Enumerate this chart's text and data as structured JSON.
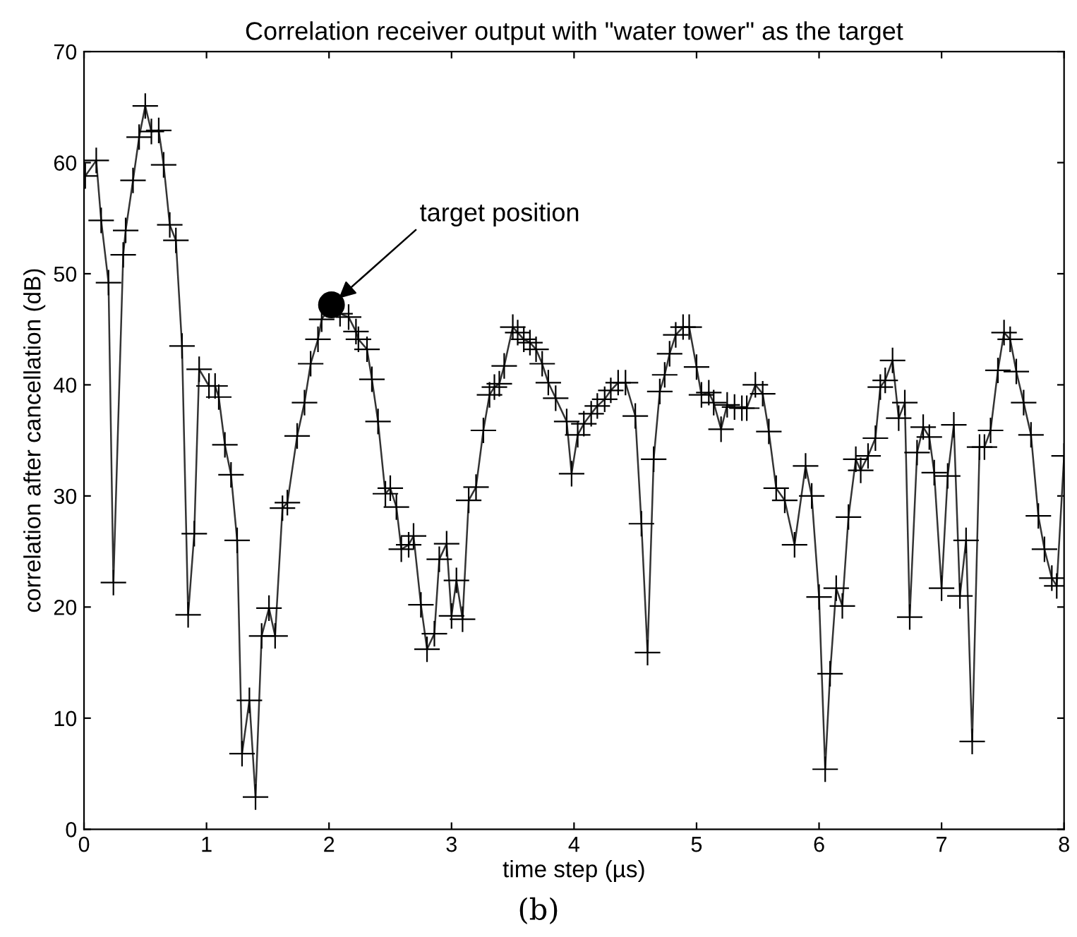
{
  "chart_data": {
    "type": "line",
    "title": "Correlation receiver output with \"water tower\" as the target",
    "xlabel": "time step (µs)",
    "ylabel": "correlation after cancellation (dB)",
    "xlim": [
      0,
      8
    ],
    "ylim": [
      0,
      70
    ],
    "xticks": [
      0,
      1,
      2,
      3,
      4,
      5,
      6,
      7,
      8
    ],
    "yticks": [
      0,
      10,
      20,
      30,
      40,
      50,
      60,
      70
    ],
    "grid": false,
    "legend": false,
    "annotations": [
      {
        "text": "target position",
        "x": 2.02,
        "y": 47.2
      },
      "(b)"
    ],
    "series": [
      {
        "type": "line",
        "color": "#333333",
        "marker": "cross",
        "line_style": "solid",
        "x": [
          0.01,
          0.1,
          0.14,
          0.2,
          0.24,
          0.32,
          0.34,
          0.4,
          0.45,
          0.5,
          0.55,
          0.61,
          0.65,
          0.7,
          0.75,
          0.8,
          0.85,
          0.9,
          0.94,
          1.02,
          1.07,
          1.1,
          1.15,
          1.2,
          1.25,
          1.29,
          1.35,
          1.4,
          1.45,
          1.51,
          1.56,
          1.62,
          1.66,
          1.74,
          1.8,
          1.85,
          1.91,
          1.94,
          2.02,
          2.09,
          2.16,
          2.22,
          2.24,
          2.31,
          2.35,
          2.4,
          2.46,
          2.5,
          2.55,
          2.59,
          2.65,
          2.69,
          2.75,
          2.8,
          2.86,
          2.9,
          2.96,
          3.0,
          3.04,
          3.09,
          3.14,
          3.2,
          3.26,
          3.31,
          3.35,
          3.39,
          3.43,
          3.5,
          3.54,
          3.59,
          3.64,
          3.69,
          3.74,
          3.79,
          3.85,
          3.94,
          3.98,
          4.03,
          4.08,
          4.14,
          4.19,
          4.25,
          4.3,
          4.36,
          4.42,
          4.5,
          4.55,
          4.6,
          4.65,
          4.7,
          4.74,
          4.78,
          4.83,
          4.89,
          4.94,
          5.0,
          5.04,
          5.1,
          5.14,
          5.2,
          5.25,
          5.31,
          5.37,
          5.41,
          5.48,
          5.54,
          5.59,
          5.65,
          5.72,
          5.8,
          5.89,
          5.94,
          6.0,
          6.05,
          6.09,
          6.14,
          6.19,
          6.24,
          6.3,
          6.34,
          6.4,
          6.46,
          6.5,
          6.54,
          6.6,
          6.65,
          6.7,
          6.74,
          6.8,
          6.85,
          6.9,
          6.94,
          7.0,
          7.05,
          7.1,
          7.15,
          7.2,
          7.25,
          7.31,
          7.35,
          7.4,
          7.46,
          7.51,
          7.56,
          7.61,
          7.67,
          7.73,
          7.79,
          7.84,
          7.9,
          7.94,
          8.0
        ],
        "values": [
          58.8,
          60.2,
          54.8,
          49.2,
          22.2,
          51.7,
          53.9,
          58.4,
          62.3,
          65.1,
          62.8,
          62.9,
          59.8,
          54.4,
          53.0,
          43.5,
          19.3,
          26.6,
          41.4,
          39.9,
          39.9,
          38.9,
          34.6,
          31.9,
          26.0,
          6.8,
          11.6,
          2.9,
          17.4,
          19.9,
          17.4,
          28.9,
          29.4,
          35.4,
          38.4,
          41.9,
          44.1,
          45.9,
          47.2,
          46.4,
          46.1,
          44.8,
          44.1,
          43.2,
          40.5,
          36.7,
          30.2,
          30.7,
          29.0,
          25.2,
          25.6,
          26.4,
          20.2,
          16.2,
          17.6,
          24.3,
          25.7,
          19.2,
          22.4,
          18.9,
          29.6,
          30.8,
          35.9,
          39.1,
          39.8,
          40.1,
          41.7,
          45.2,
          44.7,
          44.1,
          43.8,
          43.2,
          41.9,
          40.2,
          38.8,
          36.7,
          32.0,
          35.5,
          36.5,
          37.4,
          38.1,
          38.7,
          39.5,
          40.2,
          40.2,
          37.2,
          27.5,
          15.9,
          33.3,
          39.4,
          40.9,
          42.8,
          44.5,
          45.2,
          45.2,
          41.6,
          39.1,
          39.3,
          38.4,
          36.0,
          38.2,
          38.0,
          37.9,
          37.9,
          40.0,
          39.2,
          35.8,
          30.7,
          29.6,
          25.6,
          32.7,
          30.0,
          20.9,
          5.4,
          14.0,
          21.7,
          20.1,
          28.1,
          33.3,
          32.3,
          33.6,
          35.2,
          39.8,
          40.4,
          42.2,
          37.0,
          38.4,
          19.1,
          33.9,
          36.2,
          35.3,
          32.1,
          21.7,
          31.8,
          36.4,
          21.0,
          26.0,
          7.9,
          34.4,
          34.4,
          35.9,
          41.3,
          44.7,
          44.1,
          41.2,
          38.4,
          35.5,
          28.2,
          25.2,
          22.6,
          21.9,
          33.6
        ]
      },
      {
        "type": "scatter",
        "color": "#000000",
        "marker": "circle",
        "x": [
          2.02
        ],
        "values": [
          47.2
        ]
      }
    ]
  }
}
